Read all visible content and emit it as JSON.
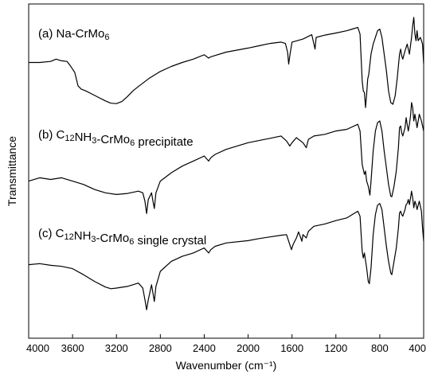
{
  "chart_data": {
    "type": "line",
    "xlabel": "Wavenumber (cm⁻¹)",
    "ylabel": "Transmittance",
    "xlim": [
      4000,
      400
    ],
    "x_reversed": true,
    "y_ticks_shown": false,
    "grid": false,
    "x_ticks": [
      4000,
      3600,
      3200,
      2800,
      2400,
      2000,
      1600,
      1200,
      800,
      400
    ],
    "series": [
      {
        "key": "a",
        "label_parts": [
          {
            "t": "(a) Na-CrMo",
            "sub": false
          },
          {
            "t": "6",
            "sub": true
          }
        ],
        "points": [
          [
            4000,
            82.5
          ],
          [
            3900,
            82.5
          ],
          [
            3800,
            82.8
          ],
          [
            3750,
            83.5
          ],
          [
            3700,
            83.0
          ],
          [
            3650,
            82.8
          ],
          [
            3620,
            81.5
          ],
          [
            3580,
            79.5
          ],
          [
            3550,
            75.5
          ],
          [
            3520,
            74.5
          ],
          [
            3480,
            74.0
          ],
          [
            3420,
            73.0
          ],
          [
            3350,
            71.8
          ],
          [
            3300,
            71.0
          ],
          [
            3250,
            70.3
          ],
          [
            3200,
            70.2
          ],
          [
            3150,
            70.8
          ],
          [
            3100,
            72.3
          ],
          [
            3050,
            74.0
          ],
          [
            3000,
            75.3
          ],
          [
            2900,
            77.8
          ],
          [
            2800,
            79.8
          ],
          [
            2700,
            81.3
          ],
          [
            2600,
            82.5
          ],
          [
            2500,
            83.5
          ],
          [
            2400,
            84.8
          ],
          [
            2360,
            83.8
          ],
          [
            2340,
            84.2
          ],
          [
            2300,
            84.6
          ],
          [
            2200,
            85.6
          ],
          [
            2000,
            86.8
          ],
          [
            1900,
            87.5
          ],
          [
            1800,
            88.2
          ],
          [
            1700,
            88.6
          ],
          [
            1660,
            88.2
          ],
          [
            1640,
            85.5
          ],
          [
            1630,
            82.0
          ],
          [
            1620,
            84.5
          ],
          [
            1600,
            88.6
          ],
          [
            1500,
            89.5
          ],
          [
            1420,
            90.8
          ],
          [
            1400,
            88.0
          ],
          [
            1390,
            86.5
          ],
          [
            1380,
            90.0
          ],
          [
            1300,
            90.7
          ],
          [
            1200,
            91.3
          ],
          [
            1100,
            92.0
          ],
          [
            1050,
            92.5
          ],
          [
            1000,
            93.0
          ],
          [
            980,
            91.0
          ],
          [
            960,
            77.0
          ],
          [
            950,
            74.0
          ],
          [
            940,
            73.5
          ],
          [
            930,
            69.0
          ],
          [
            920,
            73.0
          ],
          [
            910,
            77.5
          ],
          [
            900,
            79.0
          ],
          [
            880,
            85.0
          ],
          [
            860,
            88.0
          ],
          [
            820,
            92.0
          ],
          [
            800,
            92.5
          ],
          [
            780,
            90.0
          ],
          [
            760,
            85.0
          ],
          [
            740,
            80.0
          ],
          [
            720,
            74.0
          ],
          [
            700,
            70.5
          ],
          [
            680,
            70.0
          ],
          [
            660,
            72.5
          ],
          [
            640,
            78.0
          ],
          [
            620,
            85.0
          ],
          [
            610,
            86.5
          ],
          [
            600,
            84.5
          ],
          [
            590,
            83.5
          ],
          [
            570,
            86.0
          ],
          [
            550,
            88.0
          ],
          [
            530,
            85.0
          ],
          [
            510,
            90.0
          ],
          [
            500,
            93.5
          ],
          [
            490,
            96.0
          ],
          [
            480,
            91.0
          ],
          [
            470,
            89.0
          ],
          [
            460,
            92.0
          ],
          [
            450,
            89.0
          ],
          [
            430,
            90.0
          ],
          [
            410,
            88.0
          ],
          [
            400,
            82.0
          ]
        ]
      },
      {
        "key": "b",
        "label_parts": [
          {
            "t": "(b) C",
            "sub": false
          },
          {
            "t": "12",
            "sub": true
          },
          {
            "t": "NH",
            "sub": false
          },
          {
            "t": "3",
            "sub": true
          },
          {
            "t": "-CrMo",
            "sub": false
          },
          {
            "t": "6",
            "sub": true
          },
          {
            "t": " precipitate",
            "sub": false
          }
        ],
        "points": [
          [
            4000,
            47.0
          ],
          [
            3900,
            48.0
          ],
          [
            3800,
            47.5
          ],
          [
            3700,
            48.0
          ],
          [
            3600,
            47.0
          ],
          [
            3500,
            46.0
          ],
          [
            3400,
            44.5
          ],
          [
            3300,
            43.5
          ],
          [
            3200,
            43.0
          ],
          [
            3100,
            43.3
          ],
          [
            3000,
            44.0
          ],
          [
            2960,
            43.5
          ],
          [
            2940,
            41.0
          ],
          [
            2925,
            37.3
          ],
          [
            2910,
            41.5
          ],
          [
            2880,
            43.5
          ],
          [
            2870,
            41.5
          ],
          [
            2855,
            38.8
          ],
          [
            2840,
            43.5
          ],
          [
            2800,
            47.0
          ],
          [
            2700,
            49.5
          ],
          [
            2600,
            51.5
          ],
          [
            2500,
            53.0
          ],
          [
            2400,
            54.5
          ],
          [
            2360,
            53.0
          ],
          [
            2340,
            54.0
          ],
          [
            2300,
            55.0
          ],
          [
            2200,
            56.5
          ],
          [
            2000,
            58.5
          ],
          [
            1800,
            59.8
          ],
          [
            1700,
            60.5
          ],
          [
            1650,
            59.0
          ],
          [
            1620,
            57.5
          ],
          [
            1600,
            58.5
          ],
          [
            1560,
            60.0
          ],
          [
            1500,
            58.5
          ],
          [
            1470,
            57.0
          ],
          [
            1450,
            59.5
          ],
          [
            1400,
            60.5
          ],
          [
            1300,
            61.0
          ],
          [
            1200,
            62.0
          ],
          [
            1100,
            62.5
          ],
          [
            1000,
            64.0
          ],
          [
            980,
            62.0
          ],
          [
            960,
            52.0
          ],
          [
            940,
            49.0
          ],
          [
            930,
            50.0
          ],
          [
            920,
            47.0
          ],
          [
            905,
            45.5
          ],
          [
            890,
            42.8
          ],
          [
            880,
            47.0
          ],
          [
            860,
            56.0
          ],
          [
            840,
            62.0
          ],
          [
            820,
            64.5
          ],
          [
            800,
            65.0
          ],
          [
            780,
            62.0
          ],
          [
            760,
            56.0
          ],
          [
            740,
            51.0
          ],
          [
            720,
            46.0
          ],
          [
            700,
            42.5
          ],
          [
            690,
            42.3
          ],
          [
            670,
            45.5
          ],
          [
            650,
            50.0
          ],
          [
            630,
            57.0
          ],
          [
            620,
            63.0
          ],
          [
            610,
            63.5
          ],
          [
            600,
            61.5
          ],
          [
            590,
            60.5
          ],
          [
            570,
            63.0
          ],
          [
            560,
            66.0
          ],
          [
            550,
            64.0
          ],
          [
            540,
            62.0
          ],
          [
            530,
            64.0
          ],
          [
            520,
            66.5
          ],
          [
            510,
            70.5
          ],
          [
            500,
            69.0
          ],
          [
            490,
            65.0
          ],
          [
            480,
            67.0
          ],
          [
            470,
            65.0
          ],
          [
            460,
            63.0
          ],
          [
            440,
            67.0
          ],
          [
            420,
            65.0
          ],
          [
            400,
            62.0
          ]
        ]
      },
      {
        "key": "c",
        "label_parts": [
          {
            "t": "(c) C",
            "sub": false
          },
          {
            "t": "12",
            "sub": true
          },
          {
            "t": "NH",
            "sub": false
          },
          {
            "t": "3",
            "sub": true
          },
          {
            "t": "-CrMo",
            "sub": false
          },
          {
            "t": "6",
            "sub": true
          },
          {
            "t": " single crystal",
            "sub": false
          }
        ],
        "points": [
          [
            4000,
            22.0
          ],
          [
            3900,
            22.3
          ],
          [
            3800,
            21.8
          ],
          [
            3700,
            21.5
          ],
          [
            3600,
            20.8
          ],
          [
            3500,
            19.0
          ],
          [
            3400,
            17.0
          ],
          [
            3300,
            15.3
          ],
          [
            3250,
            14.8
          ],
          [
            3200,
            15.0
          ],
          [
            3100,
            15.5
          ],
          [
            3000,
            16.5
          ],
          [
            2960,
            15.0
          ],
          [
            2940,
            11.5
          ],
          [
            2925,
            8.5
          ],
          [
            2910,
            11.5
          ],
          [
            2880,
            16.0
          ],
          [
            2870,
            14.0
          ],
          [
            2855,
            11.0
          ],
          [
            2840,
            15.5
          ],
          [
            2800,
            20.0
          ],
          [
            2700,
            23.0
          ],
          [
            2600,
            24.5
          ],
          [
            2500,
            25.5
          ],
          [
            2400,
            27.0
          ],
          [
            2360,
            25.5
          ],
          [
            2340,
            26.5
          ],
          [
            2300,
            27.5
          ],
          [
            2200,
            28.5
          ],
          [
            2000,
            29.2
          ],
          [
            1900,
            29.8
          ],
          [
            1800,
            30.3
          ],
          [
            1700,
            30.8
          ],
          [
            1650,
            31.0
          ],
          [
            1620,
            28.0
          ],
          [
            1605,
            26.5
          ],
          [
            1590,
            28.0
          ],
          [
            1560,
            30.0
          ],
          [
            1540,
            31.8
          ],
          [
            1520,
            30.0
          ],
          [
            1510,
            29.0
          ],
          [
            1500,
            31.0
          ],
          [
            1470,
            30.0
          ],
          [
            1450,
            32.0
          ],
          [
            1400,
            33.5
          ],
          [
            1300,
            34.2
          ],
          [
            1200,
            35.2
          ],
          [
            1100,
            36.0
          ],
          [
            1000,
            38.0
          ],
          [
            980,
            36.5
          ],
          [
            960,
            26.0
          ],
          [
            950,
            24.0
          ],
          [
            940,
            25.5
          ],
          [
            920,
            21.0
          ],
          [
            905,
            17.0
          ],
          [
            895,
            16.3
          ],
          [
            880,
            21.0
          ],
          [
            860,
            31.0
          ],
          [
            840,
            37.0
          ],
          [
            820,
            39.8
          ],
          [
            800,
            40.3
          ],
          [
            780,
            38.5
          ],
          [
            760,
            33.0
          ],
          [
            740,
            27.5
          ],
          [
            720,
            23.0
          ],
          [
            700,
            19.5
          ],
          [
            690,
            19.0
          ],
          [
            670,
            23.0
          ],
          [
            650,
            27.0
          ],
          [
            630,
            33.0
          ],
          [
            620,
            37.5
          ],
          [
            610,
            38.0
          ],
          [
            600,
            37.0
          ],
          [
            590,
            36.5
          ],
          [
            570,
            38.5
          ],
          [
            560,
            40.0
          ],
          [
            550,
            40.3
          ],
          [
            540,
            41.5
          ],
          [
            530,
            40.0
          ],
          [
            520,
            42.0
          ],
          [
            510,
            44.0
          ],
          [
            500,
            42.0
          ],
          [
            490,
            39.0
          ],
          [
            480,
            41.0
          ],
          [
            470,
            40.0
          ],
          [
            460,
            38.5
          ],
          [
            440,
            41.0
          ],
          [
            420,
            38.0
          ],
          [
            410,
            33.0
          ],
          [
            400,
            29.0
          ]
        ]
      }
    ]
  }
}
